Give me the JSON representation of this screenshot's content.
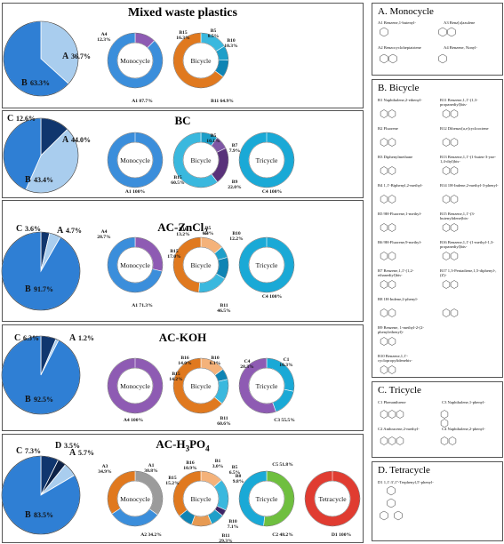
{
  "colors": {
    "pie_b": "#2f7fd4",
    "pie_a": "#a9cdee",
    "pie_c": "#10366e",
    "pie_d": "#0d2247",
    "pie_a_bright": "#d2e6f7",
    "monocycle": "#3b8edb",
    "bicycle": "#1aa9d6",
    "tricycle": "#1aa9d6",
    "tetracycle": "#e03c31",
    "purple": "#8e5bb3",
    "orange": "#e0791f",
    "gray": "#9b9b9b",
    "green": "#6fbf3f",
    "dark_purple": "#59327a",
    "light_orange": "#f4b27a",
    "peach": "#f3c9a1",
    "brown": "#7a4a2a"
  },
  "panels": [
    {
      "title": "Mixed waste plastics",
      "pie": {
        "labels": [
          {
            "text": "A",
            "value": "36.7%"
          },
          {
            "text": "B",
            "value": "63.3%"
          }
        ]
      },
      "donuts": [
        {
          "center": "Monocycle",
          "labels": [
            "A4\n12.3%",
            "A1  87.7%"
          ]
        },
        {
          "center": "Bicycle",
          "labels": [
            "B15\n16.3%",
            "B5\n8.5%",
            "B10\n10.3%",
            "B11 64.9%"
          ]
        }
      ]
    },
    {
      "title": "BC",
      "pie": {
        "labels": [
          {
            "text": "C",
            "value": "12.6%"
          },
          {
            "text": "A",
            "value": "44.0%"
          },
          {
            "text": "B",
            "value": "43.4%"
          }
        ]
      },
      "donuts": [
        {
          "center": "Monocycle",
          "labels": [
            "A1  100%"
          ]
        },
        {
          "center": "Bicycle",
          "labels": [
            "B5\n10.1%",
            "B7\n7.9%",
            "B9\n22.0%",
            "B15\n60.5%"
          ]
        },
        {
          "center": "Tricycle",
          "labels": [
            "C4  100%"
          ]
        }
      ]
    },
    {
      "title": "AC-ZnCl",
      "title_sub": "2",
      "pie": {
        "labels": [
          {
            "text": "C",
            "value": "3.6%"
          },
          {
            "text": "A",
            "value": "4.7%"
          },
          {
            "text": "B",
            "value": "91.7%"
          }
        ]
      },
      "donuts": [
        {
          "center": "Monocycle",
          "labels": [
            "A4\n28.7%",
            "A1  71.3%"
          ]
        },
        {
          "center": "Bicycle",
          "labels": [
            "B16\n13.2%",
            "B5\n6.4%",
            "B10\n12.2%",
            "B15\n17.0%",
            "B11\n46.5%"
          ]
        },
        {
          "center": "Tricycle",
          "labels": [
            "C4  100%"
          ]
        }
      ]
    },
    {
      "title": "AC-KOH",
      "pie": {
        "labels": [
          {
            "text": "C",
            "value": "6.3%"
          },
          {
            "text": "A",
            "value": "1.2%"
          },
          {
            "text": "B",
            "value": "92.5%"
          }
        ]
      },
      "donuts": [
        {
          "center": "Monocycle",
          "labels": [
            "A4  100%"
          ]
        },
        {
          "center": "Bicycle",
          "labels": [
            "B16\n14.0%",
            "B10\n6.1%",
            "B15\n14.2%",
            "B11\n60.6%"
          ]
        },
        {
          "center": "Tricycle",
          "labels": [
            "C4\n28.3%",
            "C1\n16.3%",
            "C3  55.5%"
          ]
        }
      ]
    },
    {
      "title": "AC-H",
      "title_sub": "3",
      "title_rest": "PO",
      "title_sub2": "4",
      "pie": {
        "labels": [
          {
            "text": "C",
            "value": "7.3%"
          },
          {
            "text": "D",
            "value": "3.5%"
          },
          {
            "text": "A",
            "value": "5.7%"
          },
          {
            "text": "B",
            "value": "83.5%"
          }
        ]
      },
      "donuts": [
        {
          "center": "Monocycle",
          "labels": [
            "A3\n34.9%",
            "A1\n30.8%",
            "A2  34.2%"
          ]
        },
        {
          "center": "Bicycle",
          "labels": [
            "B16\n10.9%",
            "B15\n15.2%",
            "B1\n3.0%",
            "B5\n6.5%",
            "B8\n9.8%",
            "B10\n7.1%",
            "B11\n29.3%"
          ]
        },
        {
          "center": "Tricycle",
          "labels": [
            "C5  51.8%",
            "C2  48.2%"
          ]
        },
        {
          "center": "Tetracycle",
          "labels": [
            "D1  100%"
          ]
        }
      ]
    }
  ],
  "legend": {
    "monocycle": {
      "title": "A.  Monocycle",
      "items": [
        "A1 Benzene,1-butenyl-",
        "A3 Benz[a]azulene",
        "A2 Benzocycloheptatriene",
        "A4 Benzene, Nonyl-"
      ]
    },
    "bicycle": {
      "title": "B.  Bicycle",
      "items": [
        "B1 Naphthalene,2-ethenyl-",
        "B11 Benzene,1,1'-(1,3-propanediyl)bis-",
        "B2 Fluorene",
        "B12 Dibenzo[a,e]cyclooctene",
        "B3 Diphenylmethane",
        "B13 Benzene,1,1'-(1-buten-3-yne-1,4-diyl)bis-",
        "B4 1,1'-Biphenyl,2-methyl-",
        "B14 1H-Indene,2-methyl-3-phenyl-",
        "B5 9H-Fluorene,1-methyl-",
        "B15 Benzene,1,1'-(3-butenylidene)bis-",
        "B6 9H-Fluorene,9-methyl-",
        "B16 Benzene,1,1'-(1-methyl-1,3-propanediyl)bis-",
        "B7 Benzene,1,1'-(1,2-ethanediyl)bis-",
        "B17 1,3-Pentadiene,1,5-diphenyl-, (Z)-",
        "B8 1H-Indene,2-phenyl-",
        "",
        "B9 Benzene, 1-methyl-2-(2-phenylethenyl)-",
        "",
        "B10 Benzene,1,1'-cyclopropylidenebis-",
        ""
      ]
    },
    "tricycle": {
      "title": "C.  Tricycle",
      "items": [
        "C1 Phenanthrene",
        "C3 Naphthalene,1-phenyl-",
        "C2 Anthracene,2-methyl-",
        "C4 Naphthalene,2-phenyl-"
      ]
    },
    "tetracycle": {
      "title": "D.  Tetracycle",
      "items": [
        "D1 1,1':3',1''-Terphenyl,5'-phenyl-"
      ]
    }
  },
  "chart_data": [
    {
      "type": "pie",
      "title": "Mixed waste plastics",
      "categories": [
        "A",
        "B"
      ],
      "values": [
        36.7,
        63.3
      ],
      "sub_charts": [
        {
          "type": "pie",
          "title": "Monocycle",
          "categories": [
            "A4",
            "A1"
          ],
          "values": [
            12.3,
            87.7
          ]
        },
        {
          "type": "pie",
          "title": "Bicycle",
          "categories": [
            "B15",
            "B5",
            "B10",
            "B11"
          ],
          "values": [
            16.3,
            8.5,
            10.3,
            64.9
          ]
        }
      ]
    },
    {
      "type": "pie",
      "title": "BC",
      "categories": [
        "C",
        "A",
        "B"
      ],
      "values": [
        12.6,
        44.0,
        43.4
      ],
      "sub_charts": [
        {
          "type": "pie",
          "title": "Monocycle",
          "categories": [
            "A1"
          ],
          "values": [
            100
          ]
        },
        {
          "type": "pie",
          "title": "Bicycle",
          "categories": [
            "B5",
            "B7",
            "B9",
            "B15"
          ],
          "values": [
            10.1,
            7.9,
            22.0,
            60.5
          ]
        },
        {
          "type": "pie",
          "title": "Tricycle",
          "categories": [
            "C4"
          ],
          "values": [
            100
          ]
        }
      ]
    },
    {
      "type": "pie",
      "title": "AC-ZnCl2",
      "categories": [
        "C",
        "A",
        "B"
      ],
      "values": [
        3.6,
        4.7,
        91.7
      ],
      "sub_charts": [
        {
          "type": "pie",
          "title": "Monocycle",
          "categories": [
            "A4",
            "A1"
          ],
          "values": [
            28.7,
            71.3
          ]
        },
        {
          "type": "pie",
          "title": "Bicycle",
          "categories": [
            "B16",
            "B5",
            "B10",
            "B15",
            "B11"
          ],
          "values": [
            13.2,
            6.4,
            12.2,
            17.0,
            46.5
          ]
        },
        {
          "type": "pie",
          "title": "Tricycle",
          "categories": [
            "C4"
          ],
          "values": [
            100
          ]
        }
      ]
    },
    {
      "type": "pie",
      "title": "AC-KOH",
      "categories": [
        "C",
        "A",
        "B"
      ],
      "values": [
        6.3,
        1.2,
        92.5
      ],
      "sub_charts": [
        {
          "type": "pie",
          "title": "Monocycle",
          "categories": [
            "A4"
          ],
          "values": [
            100
          ]
        },
        {
          "type": "pie",
          "title": "Bicycle",
          "categories": [
            "B16",
            "B10",
            "B15",
            "B11"
          ],
          "values": [
            14.0,
            6.1,
            14.2,
            60.6
          ]
        },
        {
          "type": "pie",
          "title": "Tricycle",
          "categories": [
            "C4",
            "C1",
            "C3"
          ],
          "values": [
            28.3,
            16.3,
            55.5
          ]
        }
      ]
    },
    {
      "type": "pie",
      "title": "AC-H3PO4",
      "categories": [
        "C",
        "D",
        "A",
        "B"
      ],
      "values": [
        7.3,
        3.5,
        5.7,
        83.5
      ],
      "sub_charts": [
        {
          "type": "pie",
          "title": "Monocycle",
          "categories": [
            "A3",
            "A1",
            "A2"
          ],
          "values": [
            34.9,
            30.8,
            34.2
          ]
        },
        {
          "type": "pie",
          "title": "Bicycle",
          "categories": [
            "B16",
            "B15",
            "B1",
            "B5",
            "B8",
            "B10",
            "B11"
          ],
          "values": [
            10.9,
            15.2,
            3.0,
            6.5,
            9.8,
            7.1,
            29.3
          ]
        },
        {
          "type": "pie",
          "title": "Tricycle",
          "categories": [
            "C5",
            "C2"
          ],
          "values": [
            51.8,
            48.2
          ]
        },
        {
          "type": "pie",
          "title": "Tetracycle",
          "categories": [
            "D1"
          ],
          "values": [
            100
          ]
        }
      ]
    }
  ]
}
